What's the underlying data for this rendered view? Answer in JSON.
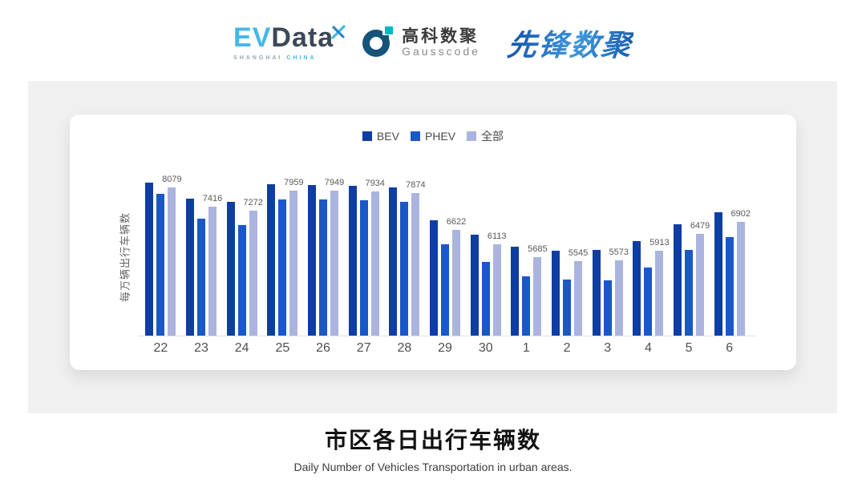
{
  "header": {
    "logos": {
      "evdata": {
        "ev": "EV",
        "data": "Data",
        "shanghai": "SHANGHAI",
        "china": "CHINA"
      },
      "gausscode": {
        "cn": "高科数聚",
        "en": "Gausscode"
      },
      "pioneer": {
        "text": "先锋数聚"
      }
    }
  },
  "chart_data": {
    "type": "bar",
    "title": "市区各日出行车辆数",
    "subtitle": "Daily Number of Vehicles Transportation in urban areas.",
    "ylabel": "每万辆出行车辆数",
    "xlabel": "",
    "categories": [
      "22",
      "23",
      "24",
      "25",
      "26",
      "27",
      "28",
      "29",
      "30",
      "1",
      "2",
      "3",
      "4",
      "5",
      "6"
    ],
    "series": [
      {
        "name": "BEV",
        "color": "#0e3da4",
        "values": [
          8240,
          7700,
          7580,
          8170,
          8150,
          8130,
          8060,
          6940,
          6460,
          6050,
          5910,
          5940,
          6230,
          6800,
          7220
        ]
      },
      {
        "name": "PHEV",
        "color": "#1a57c9",
        "values": [
          7860,
          7000,
          6780,
          7670,
          7650,
          7630,
          7580,
          6120,
          5530,
          5040,
          4920,
          4900,
          5340,
          5920,
          6370
        ]
      },
      {
        "name": "全部",
        "color": "#aab4de",
        "values": [
          8079,
          7416,
          7272,
          7959,
          7949,
          7934,
          7874,
          6622,
          6113,
          5685,
          5545,
          5573,
          5913,
          6479,
          6902
        ]
      }
    ],
    "bar_value_labels": [
      8079,
      7416,
      7272,
      7959,
      7949,
      7934,
      7874,
      6622,
      6113,
      5685,
      5545,
      5573,
      5913,
      6479,
      6902
    ],
    "labels_belong_to_series": "全部",
    "ylim": [
      3000,
      8400
    ],
    "grid": false,
    "legend_position": "top",
    "axis_line_color": "#e2e2e2",
    "colors": {
      "bev": "#0e3da4",
      "phev": "#1a57c9",
      "all": "#aab4de"
    }
  },
  "footer": {
    "title": "市区各日出行车辆数",
    "subtitle": "Daily Number of Vehicles Transportation in urban areas."
  }
}
